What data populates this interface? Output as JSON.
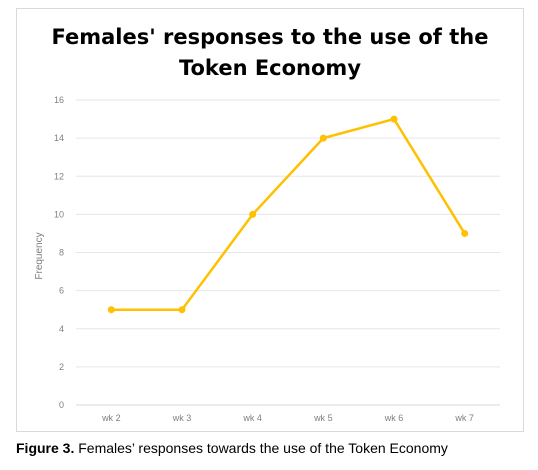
{
  "chart_data": {
    "type": "line",
    "title": "Females' responses to the use of the\nToken Economy",
    "categories": [
      "wk 2",
      "wk 3",
      "wk 4",
      "wk 5",
      "wk 6",
      "wk 7"
    ],
    "series": [
      {
        "values": [
          5,
          5,
          10,
          14,
          15,
          9
        ]
      }
    ],
    "xlabel": "",
    "ylabel": "Frequency",
    "ylim": [
      0,
      16
    ],
    "yticks": [
      0,
      2,
      4,
      6,
      8,
      10,
      12,
      14,
      16
    ],
    "grid": true,
    "colors": {
      "line": "#ffc000",
      "grid": "#e6e6e6",
      "axis": "#d9d9d9",
      "text": "#7f7f7f"
    }
  },
  "caption": {
    "label": "Figure 3.",
    "text": "Females’ responses towards the use of the Token Economy"
  }
}
